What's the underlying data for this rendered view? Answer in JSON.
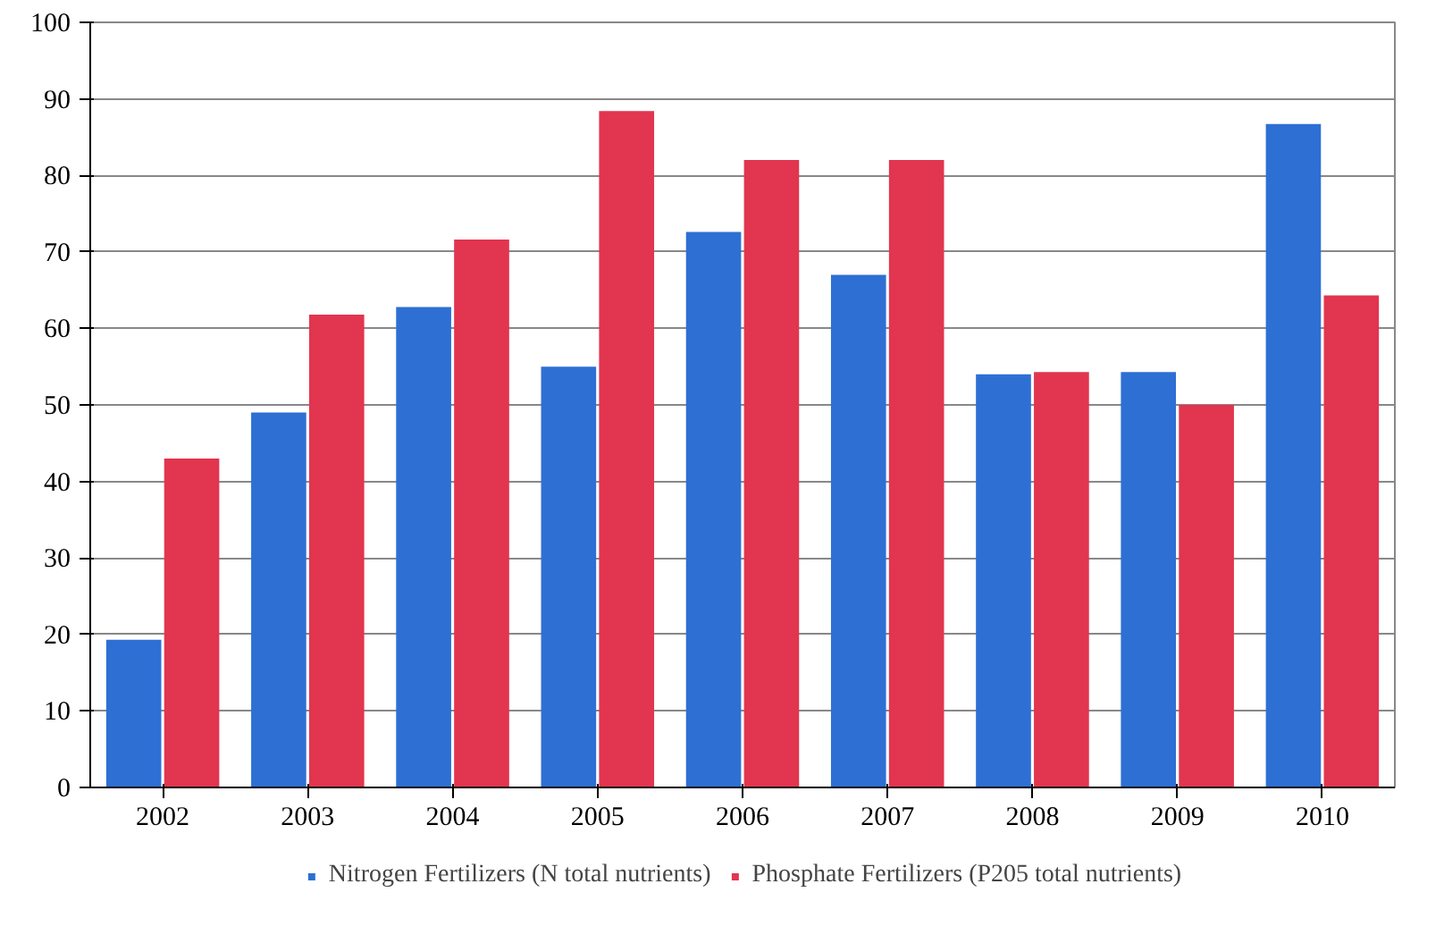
{
  "chart_data": {
    "type": "bar",
    "categories": [
      "2002",
      "2003",
      "2004",
      "2005",
      "2006",
      "2007",
      "2008",
      "2009",
      "2010"
    ],
    "series": [
      {
        "name": "Nitrogen Fertilizers (N total nutrients)",
        "color": "#2e6fd4",
        "values": [
          19.3,
          49,
          62.8,
          55,
          72.6,
          67,
          54,
          54.3,
          86.7
        ]
      },
      {
        "name": "Phosphate Fertilizers (P205 total nutrients)",
        "color": "#e2354f",
        "values": [
          43,
          61.8,
          71.6,
          88.4,
          82,
          82,
          54.3,
          50,
          64.3
        ]
      }
    ],
    "ylim": [
      0,
      100
    ],
    "yticks": [
      0,
      10,
      20,
      30,
      40,
      50,
      60,
      70,
      80,
      90,
      100
    ],
    "grid": "y",
    "legend": "bottom"
  }
}
